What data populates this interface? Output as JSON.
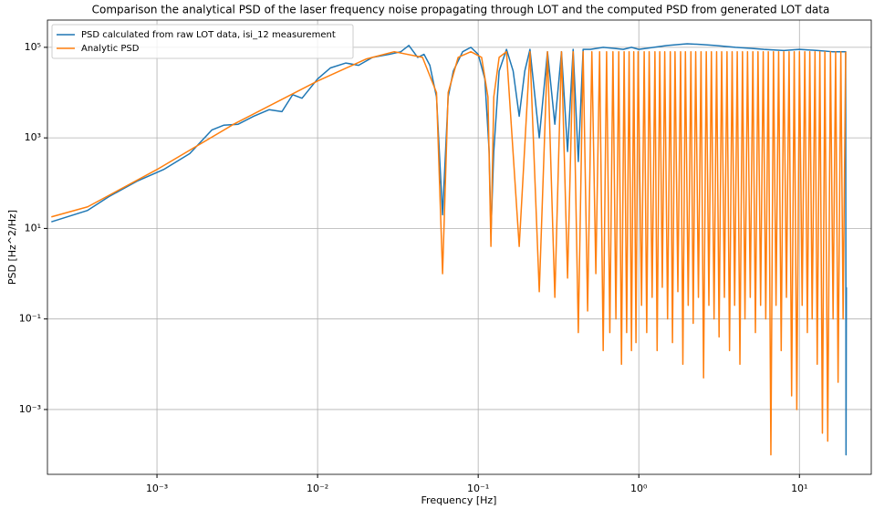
{
  "chart_data": {
    "type": "line",
    "title": "Comparison the analytical PSD of the laser frequency noise propagating through LOT and the computed PSD from generated LOT data",
    "xlabel": "Frequency [Hz]",
    "ylabel": "PSD [Hz^2/Hz]",
    "xscale": "log",
    "yscale": "log",
    "grid": true,
    "legend": "upper left",
    "xlim": [
      0.000208,
      28
    ],
    "ylim": [
      3.7e-05,
      400000
    ],
    "xticks": [
      {
        "value": 0.001,
        "label": "10⁻³"
      },
      {
        "value": 0.01,
        "label": "10⁻²"
      },
      {
        "value": 0.1,
        "label": "10⁻¹"
      },
      {
        "value": 1,
        "label": "10⁰"
      },
      {
        "value": 10,
        "label": "10¹"
      }
    ],
    "yticks": [
      {
        "value": 0.001,
        "label": "10⁻³"
      },
      {
        "value": 0.1,
        "label": "10⁻¹"
      },
      {
        "value": 10,
        "label": "10¹"
      },
      {
        "value": 1000,
        "label": "10³"
      },
      {
        "value": 100000,
        "label": "10⁵"
      }
    ],
    "series": [
      {
        "name": "PSD calculated from raw LOT data, isi_12 measurement",
        "color": "#1f77b4",
        "x": [
          0.00022,
          0.00037,
          0.0005,
          0.00075,
          0.0011,
          0.0016,
          0.0022,
          0.0026,
          0.0032,
          0.004,
          0.005,
          0.006,
          0.007,
          0.008,
          0.01,
          0.012,
          0.015,
          0.018,
          0.022,
          0.028,
          0.033,
          0.037,
          0.042,
          0.046,
          0.05,
          0.055,
          0.06,
          0.065,
          0.07,
          0.08,
          0.09,
          0.1,
          0.11,
          0.117,
          0.12,
          0.125,
          0.135,
          0.15,
          0.165,
          0.18,
          0.195,
          0.21,
          0.24,
          0.27,
          0.3,
          0.33,
          0.36,
          0.39,
          0.42,
          0.45,
          0.5,
          0.6,
          0.7,
          0.8,
          0.9,
          1.0,
          1.5,
          2,
          2.5,
          3,
          4,
          5,
          6,
          8,
          10,
          13,
          16,
          19.4,
          19.5,
          19.6
        ],
        "values": [
          14,
          25,
          50,
          110,
          200,
          450,
          1500,
          1900,
          2000,
          3000,
          4200,
          3800,
          9000,
          7500,
          20000,
          35000,
          45000,
          40000,
          60000,
          70000,
          80000,
          110000,
          60000,
          70000,
          40000,
          8000,
          20,
          8000,
          30000,
          80000,
          100000,
          70000,
          20000,
          500,
          8,
          500,
          30000,
          90000,
          30000,
          3000,
          30000,
          90000,
          1000,
          80000,
          2000,
          80000,
          500,
          90000,
          300,
          90000,
          90000,
          100000,
          95000,
          90000,
          100000,
          90000,
          110000,
          120000,
          115000,
          110000,
          100000,
          95000,
          90000,
          85000,
          90000,
          85000,
          80000,
          80000,
          0.0001,
          0.5
        ]
      },
      {
        "name": "Analytic PSD",
        "color": "#ff7f0e",
        "x": [
          0.00022,
          0.00037,
          0.001,
          0.003,
          0.01,
          0.02,
          0.03,
          0.045,
          0.055,
          0.06,
          0.065,
          0.075,
          0.09,
          0.105,
          0.115,
          0.12,
          0.125,
          0.135,
          0.15,
          0.18,
          0.21,
          0.24,
          0.27,
          0.3,
          0.33,
          0.36,
          0.39,
          0.42,
          0.45,
          0.48,
          0.51,
          0.54,
          0.57,
          0.6,
          0.63,
          0.66,
          0.69,
          0.72,
          0.75,
          0.78,
          0.81,
          0.84,
          0.87,
          0.9,
          0.93,
          0.96,
          0.99,
          1.04,
          1.08,
          1.12,
          1.16,
          1.21,
          1.26,
          1.3,
          1.35,
          1.4,
          1.45,
          1.51,
          1.57,
          1.62,
          1.68,
          1.75,
          1.82,
          1.88,
          1.95,
          2.03,
          2.11,
          2.18,
          2.26,
          2.35,
          2.44,
          2.53,
          2.63,
          2.73,
          2.83,
          2.94,
          3.05,
          3.16,
          3.28,
          3.41,
          3.54,
          3.67,
          3.81,
          3.95,
          4.1,
          4.26,
          4.42,
          4.58,
          4.75,
          4.94,
          5.13,
          5.32,
          5.52,
          5.73,
          5.95,
          6.17,
          6.4,
          6.64,
          6.89,
          7.15,
          7.42,
          7.7,
          7.99,
          8.3,
          8.62,
          8.94,
          9.28,
          9.63,
          10.0,
          10.4,
          10.8,
          11.2,
          11.6,
          12.0,
          12.5,
          12.9,
          13.4,
          13.9,
          14.4,
          15.0,
          15.6,
          16.2,
          16.8,
          17.4,
          18.1,
          18.7,
          19.4
        ],
        "values": [
          18,
          30,
          200,
          2000,
          18000,
          55000,
          80000,
          60000,
          10000,
          1,
          10000,
          60000,
          80000,
          60000,
          8000,
          4,
          8000,
          60000,
          80000,
          4,
          80000,
          0.4,
          80000,
          0.3,
          80000,
          0.8,
          80000,
          0.05,
          80000,
          0.15,
          80000,
          1,
          80000,
          0.02,
          80000,
          0.05,
          80000,
          0.1,
          80000,
          0.01,
          80000,
          0.05,
          80000,
          0.02,
          80000,
          0.03,
          80000,
          0.2,
          80000,
          0.05,
          80000,
          0.3,
          80000,
          0.02,
          80000,
          0.5,
          80000,
          0.1,
          80000,
          0.03,
          80000,
          0.4,
          80000,
          0.01,
          80000,
          0.2,
          80000,
          0.08,
          80000,
          0.3,
          80000,
          0.005,
          80000,
          0.2,
          80000,
          0.1,
          80000,
          0.04,
          80000,
          0.3,
          80000,
          0.02,
          80000,
          0.2,
          80000,
          0.01,
          80000,
          0.1,
          80000,
          0.3,
          80000,
          0.05,
          80000,
          0.2,
          80000,
          0.1,
          80000,
          0.0001,
          80000,
          0.2,
          80000,
          0.02,
          80000,
          0.3,
          80000,
          0.002,
          80000,
          0.001,
          80000,
          0.2,
          80000,
          0.05,
          80000,
          0.1,
          80000,
          0.01,
          80000,
          0.0003,
          80000,
          0.0002,
          80000,
          0.1,
          80000,
          0.004,
          80000,
          0.1,
          80000
        ]
      }
    ]
  }
}
